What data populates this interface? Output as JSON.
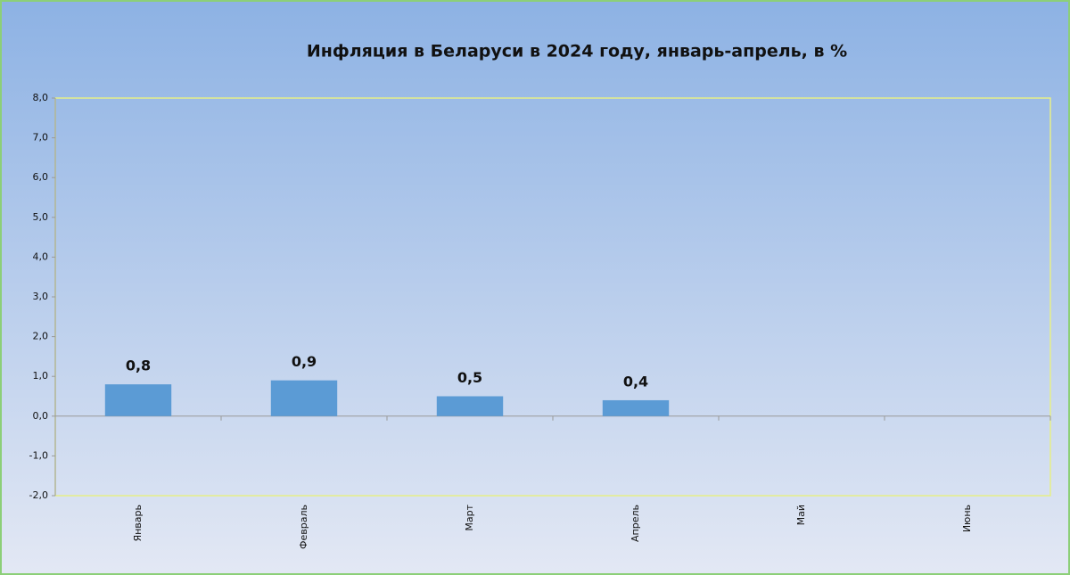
{
  "chart_data": {
    "type": "bar",
    "title": "Инфляция в Беларуси в 2024 году, январь-апрель, в %",
    "categories": [
      "Январь",
      "Февраль",
      "Март",
      "Апрель",
      "Май",
      "Июнь"
    ],
    "values": [
      0.8,
      0.9,
      0.5,
      0.4,
      null,
      null
    ],
    "value_labels": [
      "0,8",
      "0,9",
      "0,5",
      "0,4",
      null,
      null
    ],
    "color": "#5b9bd5",
    "ylim": [
      -2,
      8
    ],
    "yticks": [
      {
        "value": -2,
        "label": "-2,0"
      },
      {
        "value": -1,
        "label": "-1,0"
      },
      {
        "value": 0,
        "label": "0,0"
      },
      {
        "value": 1,
        "label": "1,0"
      },
      {
        "value": 2,
        "label": "2,0"
      },
      {
        "value": 3,
        "label": "3,0"
      },
      {
        "value": 4,
        "label": "4,0"
      },
      {
        "value": 5,
        "label": "5,0"
      },
      {
        "value": 6,
        "label": "6,0"
      },
      {
        "value": 7,
        "label": "7,0"
      },
      {
        "value": 8,
        "label": "8,0"
      }
    ],
    "grid": false
  }
}
